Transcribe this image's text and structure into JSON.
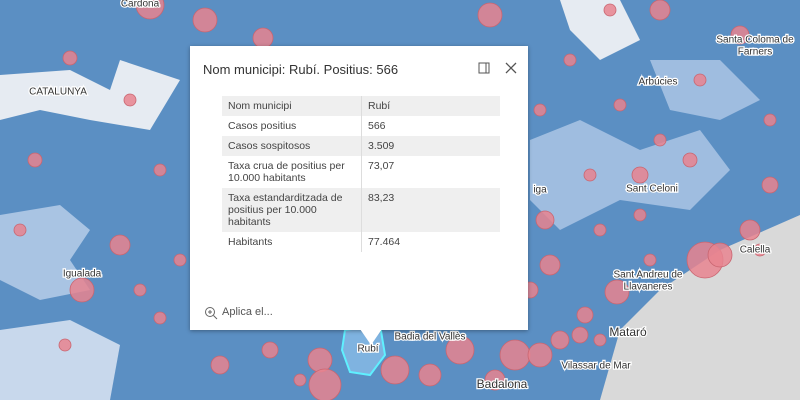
{
  "popup": {
    "title": "Nom municipi: Rubí. Positius: 566",
    "table": {
      "rows": [
        [
          "Nom municipi",
          "Rubí"
        ],
        [
          "Casos positius",
          "566"
        ],
        [
          "Casos sospitosos",
          "3.509"
        ],
        [
          "Taxa crua de positius per 10.000 habitants",
          "73,07"
        ],
        [
          "Taxa estandarditzada de positius per 10.000 habitants",
          "83,23"
        ],
        [
          "Habitants",
          "77.464"
        ]
      ]
    },
    "action": "Aplica el..."
  },
  "map": {
    "labels": [
      "Cardona",
      "CATALUNYA",
      "Santa Coloma de",
      "Farners",
      "Arbúcies",
      "iga",
      "Sant Celoni",
      "Calella",
      "Sant Andreu de",
      "Llavaneres",
      "Igualada",
      "Mataró",
      "Vilassar de Mar",
      "Badia del Vallès",
      "Rubí",
      "Badalona"
    ]
  }
}
